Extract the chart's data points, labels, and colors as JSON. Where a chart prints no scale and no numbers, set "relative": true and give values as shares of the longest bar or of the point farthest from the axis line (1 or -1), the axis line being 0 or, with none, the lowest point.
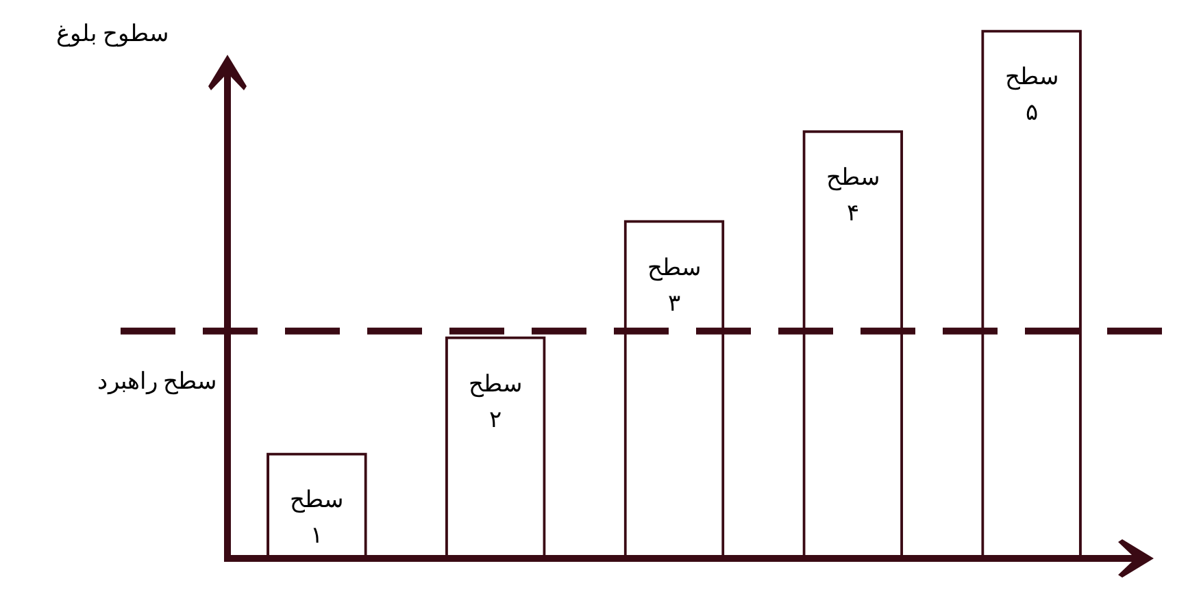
{
  "chart_data": {
    "type": "bar",
    "relative": true,
    "ylabel": "سطوح بلوغ",
    "categories": [
      "سطح ۱",
      "سطح ۲",
      "سطح ۳",
      "سطح ۴",
      "سطح ۵"
    ],
    "values": [
      0.2,
      0.42,
      0.64,
      0.81,
      1
    ],
    "color": "#3a0a14",
    "ref_lines": [
      {
        "axis": "y",
        "value": 0.43,
        "label": "سطح راهبرد",
        "color": "#3a0a14",
        "line_style": "dashed"
      }
    ],
    "grid": false,
    "legend": false
  }
}
